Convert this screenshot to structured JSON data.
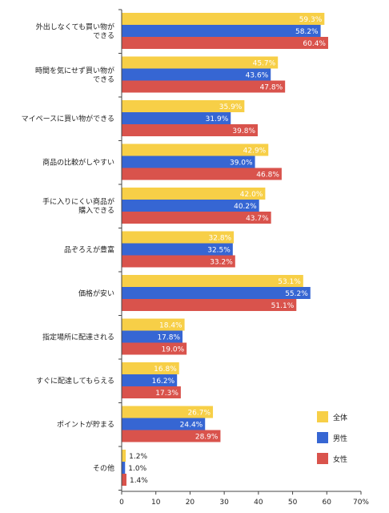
{
  "chart_data": {
    "type": "bar",
    "orientation": "horizontal",
    "categories": [
      [
        "外出しなくても買い物が",
        "できる"
      ],
      [
        "時間を気にせず買い物が",
        "できる"
      ],
      [
        "マイペースに買い物ができる"
      ],
      [
        "商品の比較がしやすい"
      ],
      [
        "手に入りにくい商品が",
        "購入できる"
      ],
      [
        "品ぞろえが豊富"
      ],
      [
        "価格が安い"
      ],
      [
        "指定場所に配達される"
      ],
      [
        "すぐに配達してもらえる"
      ],
      [
        "ポイントが貯まる"
      ],
      [
        "その他"
      ]
    ],
    "series": [
      {
        "name": "全体",
        "color": "#F7CF47",
        "values": [
          59.3,
          45.7,
          35.9,
          42.9,
          42.0,
          32.8,
          53.1,
          18.4,
          16.8,
          26.7,
          1.2
        ]
      },
      {
        "name": "男性",
        "color": "#3666D3",
        "values": [
          58.2,
          43.6,
          31.9,
          39.0,
          40.2,
          32.5,
          55.2,
          17.8,
          16.2,
          24.4,
          1.0
        ]
      },
      {
        "name": "女性",
        "color": "#D9534C",
        "values": [
          60.4,
          47.8,
          39.8,
          46.8,
          43.7,
          33.2,
          51.1,
          19.0,
          17.3,
          28.9,
          1.4
        ]
      }
    ],
    "xlim": [
      0,
      70
    ],
    "xticks": [
      "0",
      "10",
      "20",
      "30",
      "40",
      "50",
      "60",
      "70%"
    ],
    "value_suffix": "%",
    "legend_position": "bottom-right",
    "grid": false
  }
}
